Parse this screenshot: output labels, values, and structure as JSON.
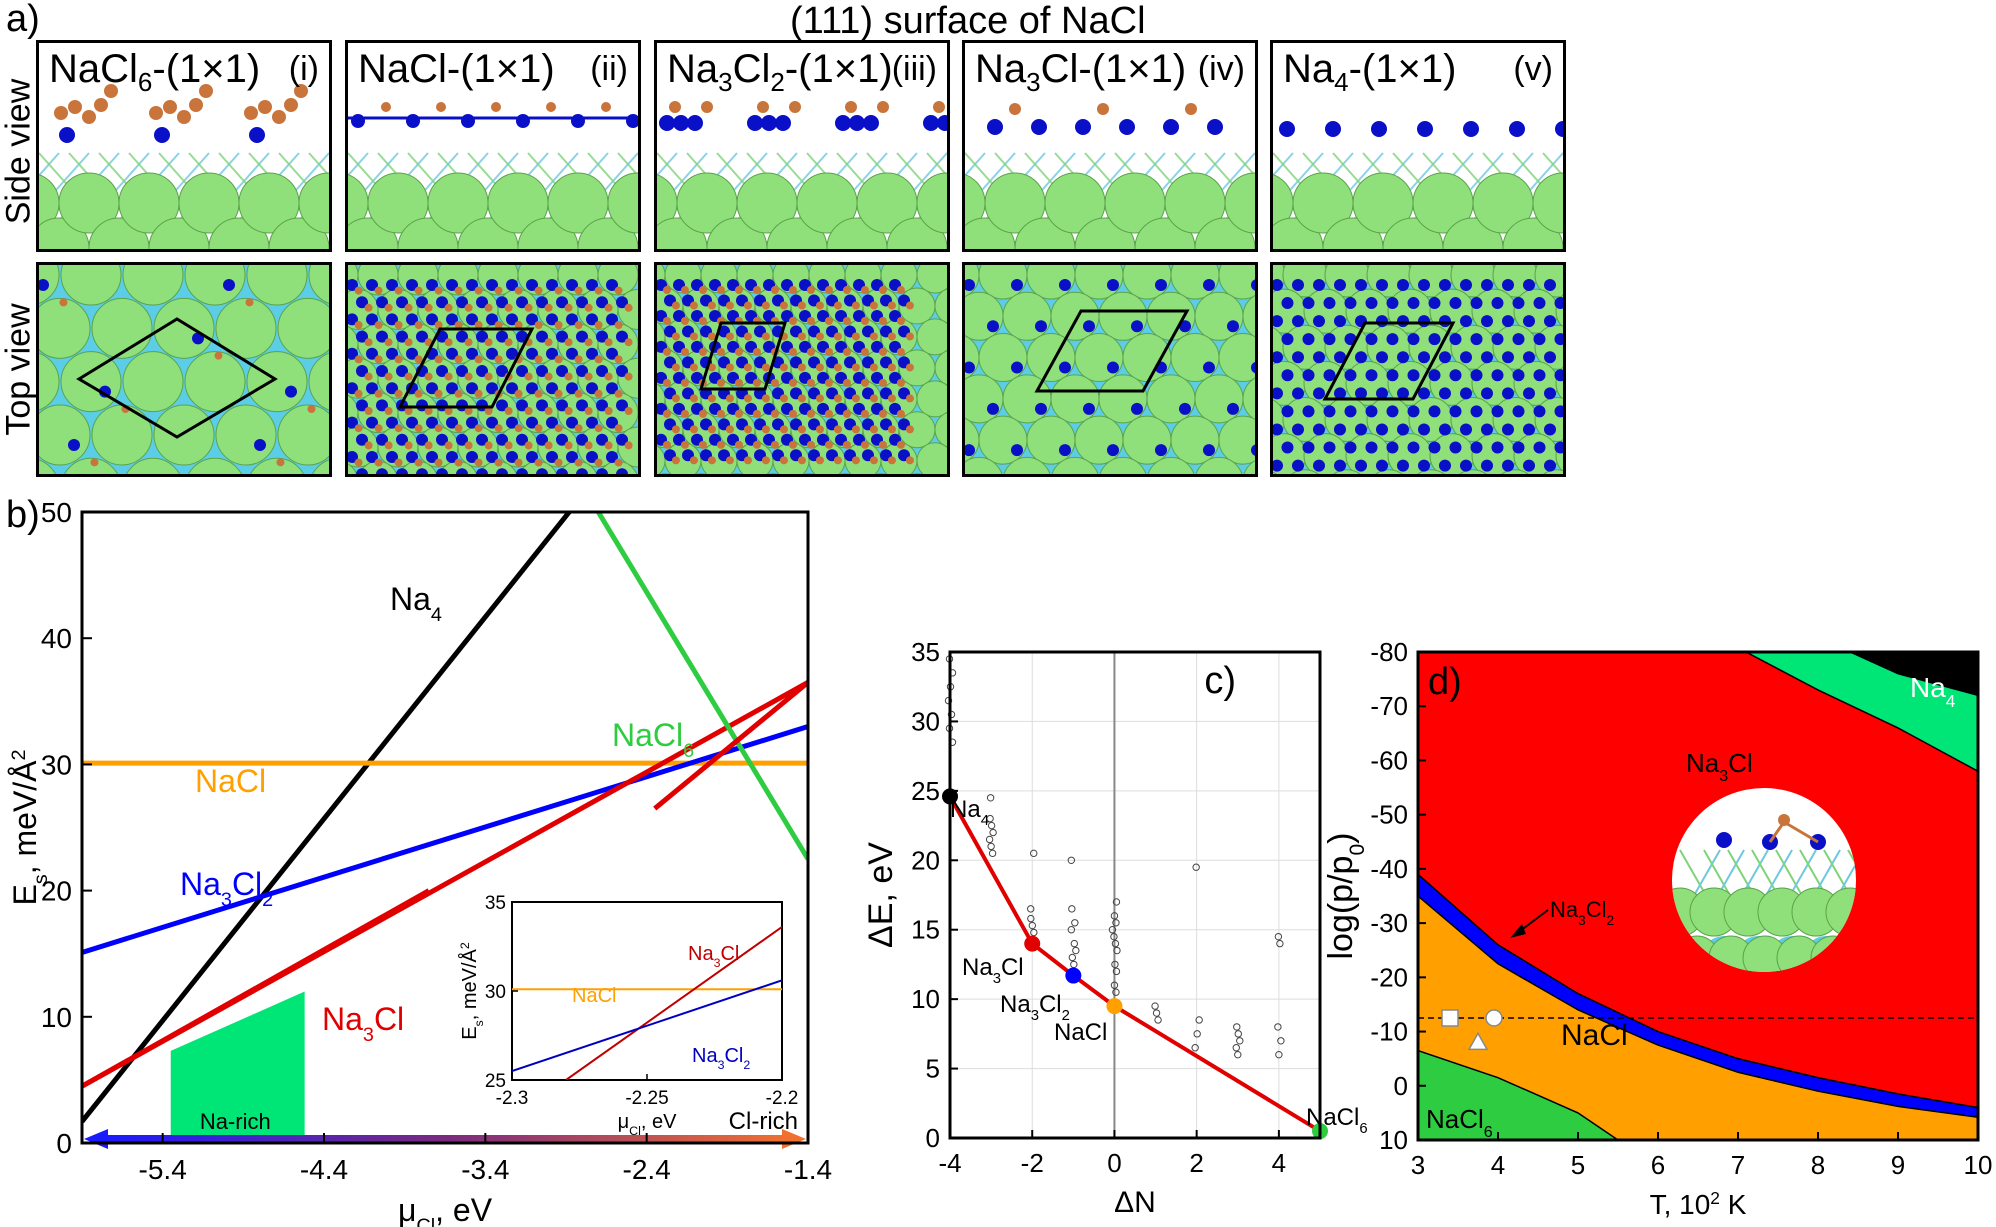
{
  "figure": {
    "label_a": "a)",
    "title": "(111) surface of NaCl",
    "row_labels": {
      "side": "Side view",
      "top": "Top view"
    },
    "panels": [
      {
        "formula_base": "NaCl",
        "formula_sub": "6",
        "formula_suffix": "-(1×1)",
        "numeral": "(i)"
      },
      {
        "formula_base": "NaCl",
        "formula_sub": "",
        "formula_suffix": "-(1×1)",
        "numeral": "(ii)"
      },
      {
        "formula_base": "Na",
        "formula_sub": "3",
        "formula_mid": "Cl",
        "formula_sub2": "2",
        "formula_suffix": "-(1×1)",
        "numeral": "(iii)"
      },
      {
        "formula_base": "Na",
        "formula_sub": "3",
        "formula_mid": "Cl",
        "formula_sub2": "",
        "formula_suffix": "-(1×1)",
        "numeral": "(iv)"
      },
      {
        "formula_base": "Na",
        "formula_sub": "4",
        "formula_suffix": "-(1×1)",
        "numeral": "(v)"
      }
    ],
    "colors": {
      "cl": "#8fe07a",
      "na": "#5ccde6",
      "na_top": "#0a10c8",
      "cl_top": "#c8743a",
      "green": "#00e676",
      "red": "#ff0000",
      "blue": "#0000ff",
      "orange": "#ffa000",
      "nacl6": "#2ecc40"
    }
  },
  "chart_data": [
    {
      "id": "b",
      "panel_label": "b)",
      "type": "line",
      "xlabel": "μ",
      "xlabel_sub": "Cl",
      "xlabel_unit": ", eV",
      "ylabel": "E",
      "ylabel_sub": "s",
      "ylabel_unit": ", meV/Å",
      "ylabel_sup": "2",
      "xlim": [
        -5.9,
        -1.4
      ],
      "ylim": [
        0,
        50
      ],
      "xticks": [
        -5.4,
        -4.4,
        -3.4,
        -2.4,
        -1.4
      ],
      "yticks": [
        0,
        10,
        20,
        30,
        40,
        50
      ],
      "series": [
        {
          "name": "Na4",
          "label_base": "Na",
          "label_sub": "4",
          "color": "#000000",
          "x": [
            -5.9,
            -2.88
          ],
          "y": [
            1.7,
            50
          ]
        },
        {
          "name": "NaCl",
          "label_base": "NaCl",
          "label_sub": "",
          "color": "#ffa000",
          "x": [
            -5.9,
            -1.4
          ],
          "y": [
            30.1,
            30.1
          ]
        },
        {
          "name": "Na3Cl2",
          "label_base": "Na",
          "label_sub": "3",
          "label_mid": "Cl",
          "label_sub2": "2",
          "color": "#0000ff",
          "x": [
            -5.9,
            -1.4
          ],
          "y": [
            15.1,
            33.0
          ]
        },
        {
          "name": "Na3Cl",
          "label_base": "Na",
          "label_sub": "3",
          "label_mid": "Cl",
          "label_sub2": "",
          "color": "#e00000",
          "x": [
            -5.9,
            -1.4
          ],
          "y": [
            4.5,
            36.5
          ]
        },
        {
          "name": "NaCl6",
          "label_base": "NaCl",
          "label_sub": "6",
          "color": "#2ecc40",
          "x": [
            -2.7,
            -1.4
          ],
          "y": [
            50,
            22.5
          ]
        }
      ],
      "na_rich_region": {
        "label": "Na-rich",
        "x": [
          -5.35,
          -4.52
        ],
        "y_top": [
          7.3,
          12.0
        ]
      },
      "arrow_labels": {
        "left": "Na-rich",
        "right": "Cl-rich"
      },
      "inset": {
        "xlim": [
          -2.3,
          -2.2
        ],
        "ylim": [
          25,
          35
        ],
        "xticks": [
          -2.3,
          -2.25,
          -2.2
        ],
        "yticks": [
          25,
          30,
          35
        ],
        "xlabel": "μ",
        "xlabel_sub": "Cl",
        "xlabel_unit": ", eV",
        "ylabel": "E",
        "ylabel_sub": "s",
        "ylabel_unit": ", meV/Å",
        "ylabel_sup": "2",
        "series": [
          {
            "name": "NaCl",
            "label": "NaCl",
            "color": "#ffa000",
            "x": [
              -2.3,
              -2.2
            ],
            "y": [
              30.1,
              30.1
            ]
          },
          {
            "name": "Na3Cl",
            "label_base": "Na",
            "label_sub": "3",
            "label_mid": "Cl",
            "color": "#c00000",
            "x": [
              -2.28,
              -2.2
            ],
            "y": [
              25,
              33.6
            ]
          },
          {
            "name": "Na3Cl2",
            "label_base": "Na",
            "label_sub": "3",
            "label_mid": "Cl",
            "label_sub2": "2",
            "color": "#0000c0",
            "x": [
              -2.3,
              -2.2
            ],
            "y": [
              25.5,
              30.6
            ]
          }
        ]
      }
    },
    {
      "id": "c",
      "panel_label": "c)",
      "type": "scatter",
      "xlabel": "ΔN",
      "ylabel": "ΔE, eV",
      "xlim": [
        -4,
        5
      ],
      "ylim": [
        0,
        35
      ],
      "xticks": [
        -4,
        -2,
        0,
        2,
        4
      ],
      "yticks": [
        0,
        5,
        10,
        15,
        20,
        25,
        30,
        35
      ],
      "hull": {
        "x": [
          -4,
          -2,
          -1,
          0,
          5
        ],
        "y": [
          24.6,
          14.0,
          11.7,
          9.5,
          0.5
        ]
      },
      "highlighted": [
        {
          "name": "Na4",
          "label_base": "Na",
          "label_sub": "4",
          "x": -4,
          "y": 24.6,
          "color": "#000000"
        },
        {
          "name": "Na3Cl",
          "label_base": "Na",
          "label_sub": "3",
          "label_mid": "Cl",
          "x": -2,
          "y": 14.0,
          "color": "#e00000"
        },
        {
          "name": "Na3Cl2",
          "label_base": "Na",
          "label_sub": "3",
          "label_mid": "Cl",
          "label_sub2": "2",
          "x": -1,
          "y": 11.7,
          "color": "#0000ff"
        },
        {
          "name": "NaCl",
          "label_base": "NaCl",
          "x": 0,
          "y": 9.5,
          "color": "#ffa000"
        },
        {
          "name": "NaCl6",
          "label_base": "NaCl",
          "label_sub": "6",
          "x": 5,
          "y": 0.5,
          "color": "#2ecc40"
        }
      ],
      "others": [
        {
          "x": -4,
          "y": [
            28.5,
            29.5,
            30.5,
            31.5,
            32.5,
            33.5,
            34.5
          ]
        },
        {
          "x": -3,
          "y": [
            20.5,
            21.0,
            21.5,
            22.0,
            22.5,
            23.0,
            24.5
          ]
        },
        {
          "x": -2,
          "y": [
            14.8,
            15.3,
            15.8,
            16.5,
            20.5
          ]
        },
        {
          "x": -1,
          "y": [
            12.5,
            13.0,
            13.5,
            14.0,
            15.0,
            15.5,
            16.5,
            20.0
          ]
        },
        {
          "x": 0,
          "y": [
            10.5,
            11.0,
            12.0,
            12.5,
            13.5,
            14.0,
            14.5,
            15.0,
            15.5,
            16.0,
            17.0
          ]
        },
        {
          "x": 1,
          "y": [
            8.5,
            9.0,
            9.5
          ]
        },
        {
          "x": 2,
          "y": [
            6.5,
            7.5,
            8.5,
            19.5
          ]
        },
        {
          "x": 3,
          "y": [
            6.0,
            6.5,
            7.0,
            7.5,
            8.0
          ]
        },
        {
          "x": 4,
          "y": [
            6.0,
            7.0,
            8.0,
            14.0,
            14.5
          ]
        }
      ]
    },
    {
      "id": "d",
      "panel_label": "d)",
      "type": "area",
      "xlabel": "T, 10",
      "xlabel_sup": "2",
      "xlabel_unit": " K",
      "ylabel": "log(p/p",
      "ylabel_sub": "0",
      "ylabel_end": ")",
      "xlim": [
        3,
        10
      ],
      "ylim": [
        10,
        -80
      ],
      "xticks": [
        3,
        4,
        5,
        6,
        7,
        8,
        9,
        10
      ],
      "yticks": [
        10,
        0,
        -10,
        -20,
        -30,
        -40,
        -50,
        -60,
        -70,
        -80
      ],
      "regions": [
        {
          "name": "Na4",
          "label_base": "Na",
          "label_sub": "4",
          "color": "#000000"
        },
        {
          "name": "Na3Cl",
          "label_base": "Na",
          "label_sub": "3",
          "label_mid": "Cl",
          "color": "#ff0000"
        },
        {
          "name": "Na3Cl2",
          "label_base": "Na",
          "label_sub": "3",
          "label_mid": "Cl",
          "label_sub2": "2",
          "color": "#0000ff"
        },
        {
          "name": "NaCl",
          "label_base": "NaCl",
          "color": "#ffa000"
        },
        {
          "name": "NaCl6",
          "label_base": "NaCl",
          "label_sub": "6",
          "color": "#2ecc40"
        },
        {
          "name": "green_band",
          "color": "#00e676"
        }
      ],
      "boundaries": {
        "na4_top": {
          "x": [
            8.4,
            9.0,
            10.0
          ],
          "y": [
            -80,
            -76,
            -72
          ]
        },
        "green_top": {
          "x": [
            7.1,
            8.0,
            9.0,
            10.0
          ],
          "y": [
            -80,
            -73,
            -66,
            -58
          ]
        },
        "na3cl2_upper": {
          "x": [
            3.0,
            4.0,
            5.0,
            6.0,
            7.0,
            8.0,
            9.0,
            10.0
          ],
          "y": [
            -39,
            -26,
            -17,
            -10,
            -5,
            -1.5,
            1.5,
            4
          ]
        },
        "na3cl2_lower": {
          "x": [
            3.0,
            4.0,
            5.0,
            6.0,
            7.0,
            8.0,
            9.0,
            10.0
          ],
          "y": [
            -35,
            -22.5,
            -14,
            -7.5,
            -2.5,
            1.0,
            3.8,
            5.8
          ]
        },
        "nacl6_top": {
          "x": [
            3.0,
            4.0,
            5.0,
            5.5
          ],
          "y": [
            -6.5,
            -1.5,
            5.0,
            10.0
          ]
        }
      },
      "dashed_level": -12.5,
      "markers": [
        {
          "shape": "square",
          "x": 3.4,
          "y": -12.5
        },
        {
          "shape": "circle",
          "x": 3.95,
          "y": -12.5
        },
        {
          "shape": "triangle",
          "x": 3.75,
          "y": -8
        }
      ]
    }
  ]
}
